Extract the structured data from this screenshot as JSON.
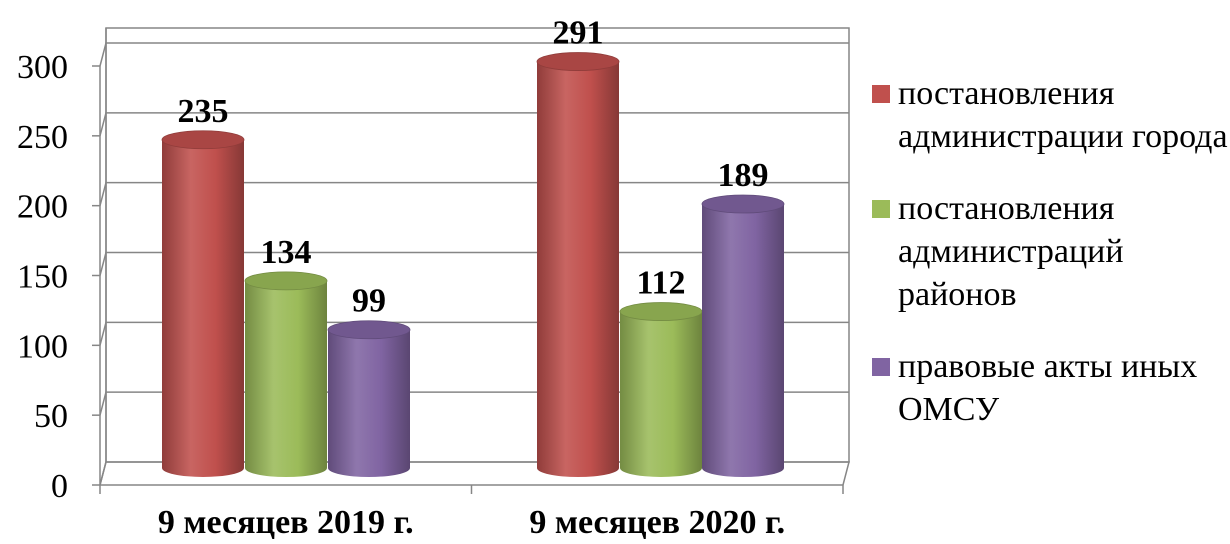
{
  "chart_data": {
    "type": "bar",
    "categories": [
      "9 месяцев 2019 г.",
      "9 месяцев 2020 г."
    ],
    "series": [
      {
        "name": "постановления администрации города",
        "values": [
          235,
          291
        ],
        "color": "#c0504d"
      },
      {
        "name": "постановления администраций районов",
        "values": [
          134,
          112
        ],
        "color": "#9bbb59"
      },
      {
        "name": "правовые акты иных ОМСУ",
        "values": [
          99,
          189
        ],
        "color": "#8064a2"
      }
    ],
    "ylim": [
      0,
      300
    ],
    "yticks": [
      0,
      50,
      100,
      150,
      200,
      250,
      300
    ],
    "grid": true,
    "legend_position": "right",
    "style": "3d-cylinder"
  }
}
